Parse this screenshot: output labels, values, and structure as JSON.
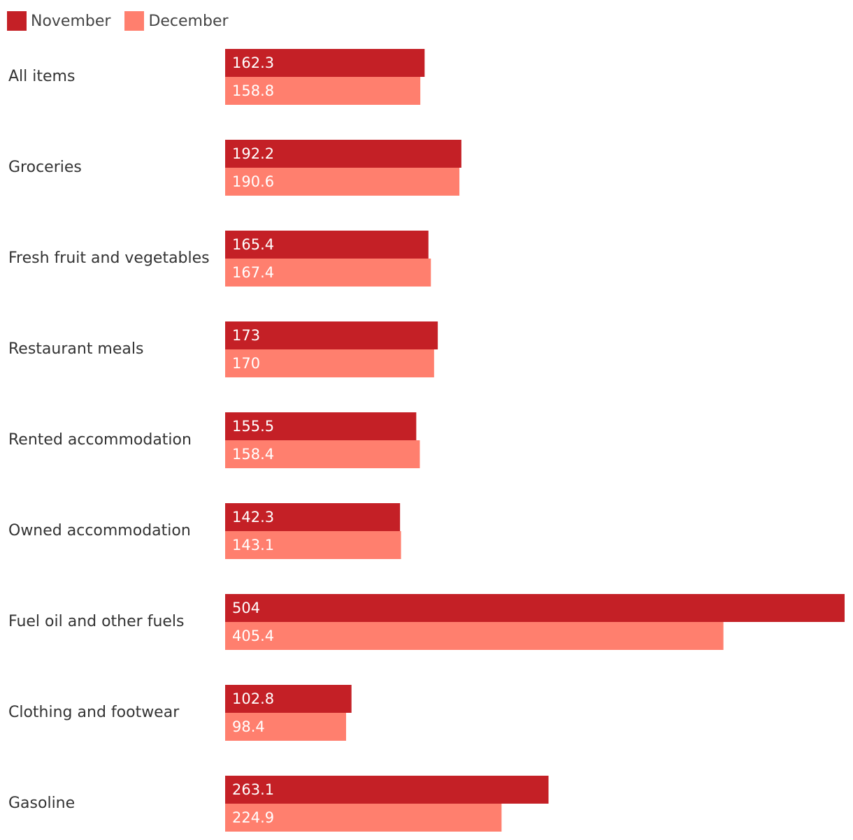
{
  "chart_data": {
    "type": "bar",
    "orientation": "horizontal",
    "title": "",
    "xlabel": "",
    "ylabel": "",
    "grid": false,
    "legend_position": "top-left",
    "xlim": [
      0,
      504
    ],
    "categories": [
      "All items",
      "Groceries",
      "Fresh fruit and vegetables",
      "Restaurant meals",
      "Rented accommodation",
      "Owned accommodation",
      "Fuel oil and other fuels",
      "Clothing and footwear",
      "Gasoline"
    ],
    "series": [
      {
        "name": "November",
        "color": "#c42026",
        "values": [
          162.3,
          192.2,
          165.4,
          173,
          155.5,
          142.3,
          504,
          102.8,
          263.1
        ],
        "labels": [
          "162.3",
          "192.2",
          "165.4",
          "173",
          "155.5",
          "142.3",
          "504",
          "102.8",
          "263.1"
        ]
      },
      {
        "name": "December",
        "color": "#ff7f6e",
        "values": [
          158.8,
          190.6,
          167.4,
          170,
          158.4,
          143.1,
          405.4,
          98.4,
          224.9
        ],
        "labels": [
          "158.8",
          "190.6",
          "167.4",
          "170",
          "158.4",
          "143.1",
          "405.4",
          "98.4",
          "224.9"
        ]
      }
    ]
  }
}
